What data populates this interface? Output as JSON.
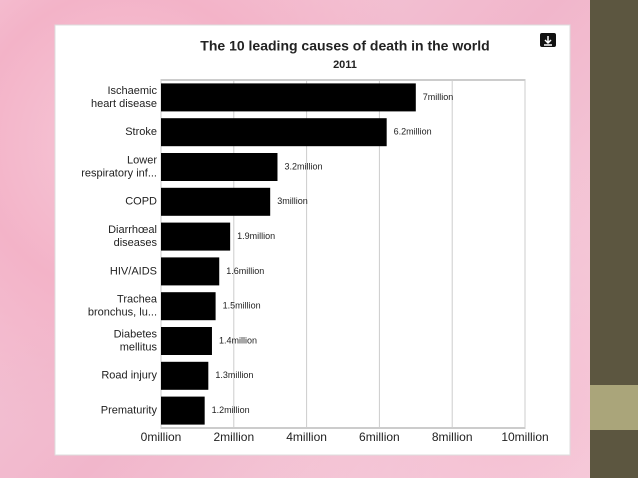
{
  "chart_data": {
    "type": "bar",
    "orientation": "horizontal",
    "title": "The 10 leading causes of death in the world",
    "subtitle": "2011",
    "categories": [
      [
        "Ischaemic",
        "heart disease"
      ],
      [
        "Stroke"
      ],
      [
        "Lower",
        "respiratory inf..."
      ],
      [
        "COPD"
      ],
      [
        "Diarrhœal",
        "diseases"
      ],
      [
        "HIV/AIDS"
      ],
      [
        "Trachea",
        "bronchus, lu..."
      ],
      [
        "Diabetes",
        "mellitus"
      ],
      [
        "Road injury"
      ],
      [
        "Prematurity"
      ]
    ],
    "values": [
      7,
      6.2,
      3.2,
      3,
      1.9,
      1.6,
      1.5,
      1.4,
      1.3,
      1.2
    ],
    "value_labels": [
      "7million",
      "6.2million",
      "3.2million",
      "3million",
      "1.9million",
      "1.6million",
      "1.5million",
      "1.4million",
      "1.3million",
      "1.2million"
    ],
    "color": "#000000",
    "xlim": [
      0,
      10
    ],
    "xticks": [
      {
        "value": 0,
        "label": "0million"
      },
      {
        "value": 2,
        "label": "2million"
      },
      {
        "value": 4,
        "label": "4million"
      },
      {
        "value": 6,
        "label": "6million"
      },
      {
        "value": 8,
        "label": "8million"
      },
      {
        "value": 10,
        "label": "10million"
      }
    ],
    "grid": true
  }
}
